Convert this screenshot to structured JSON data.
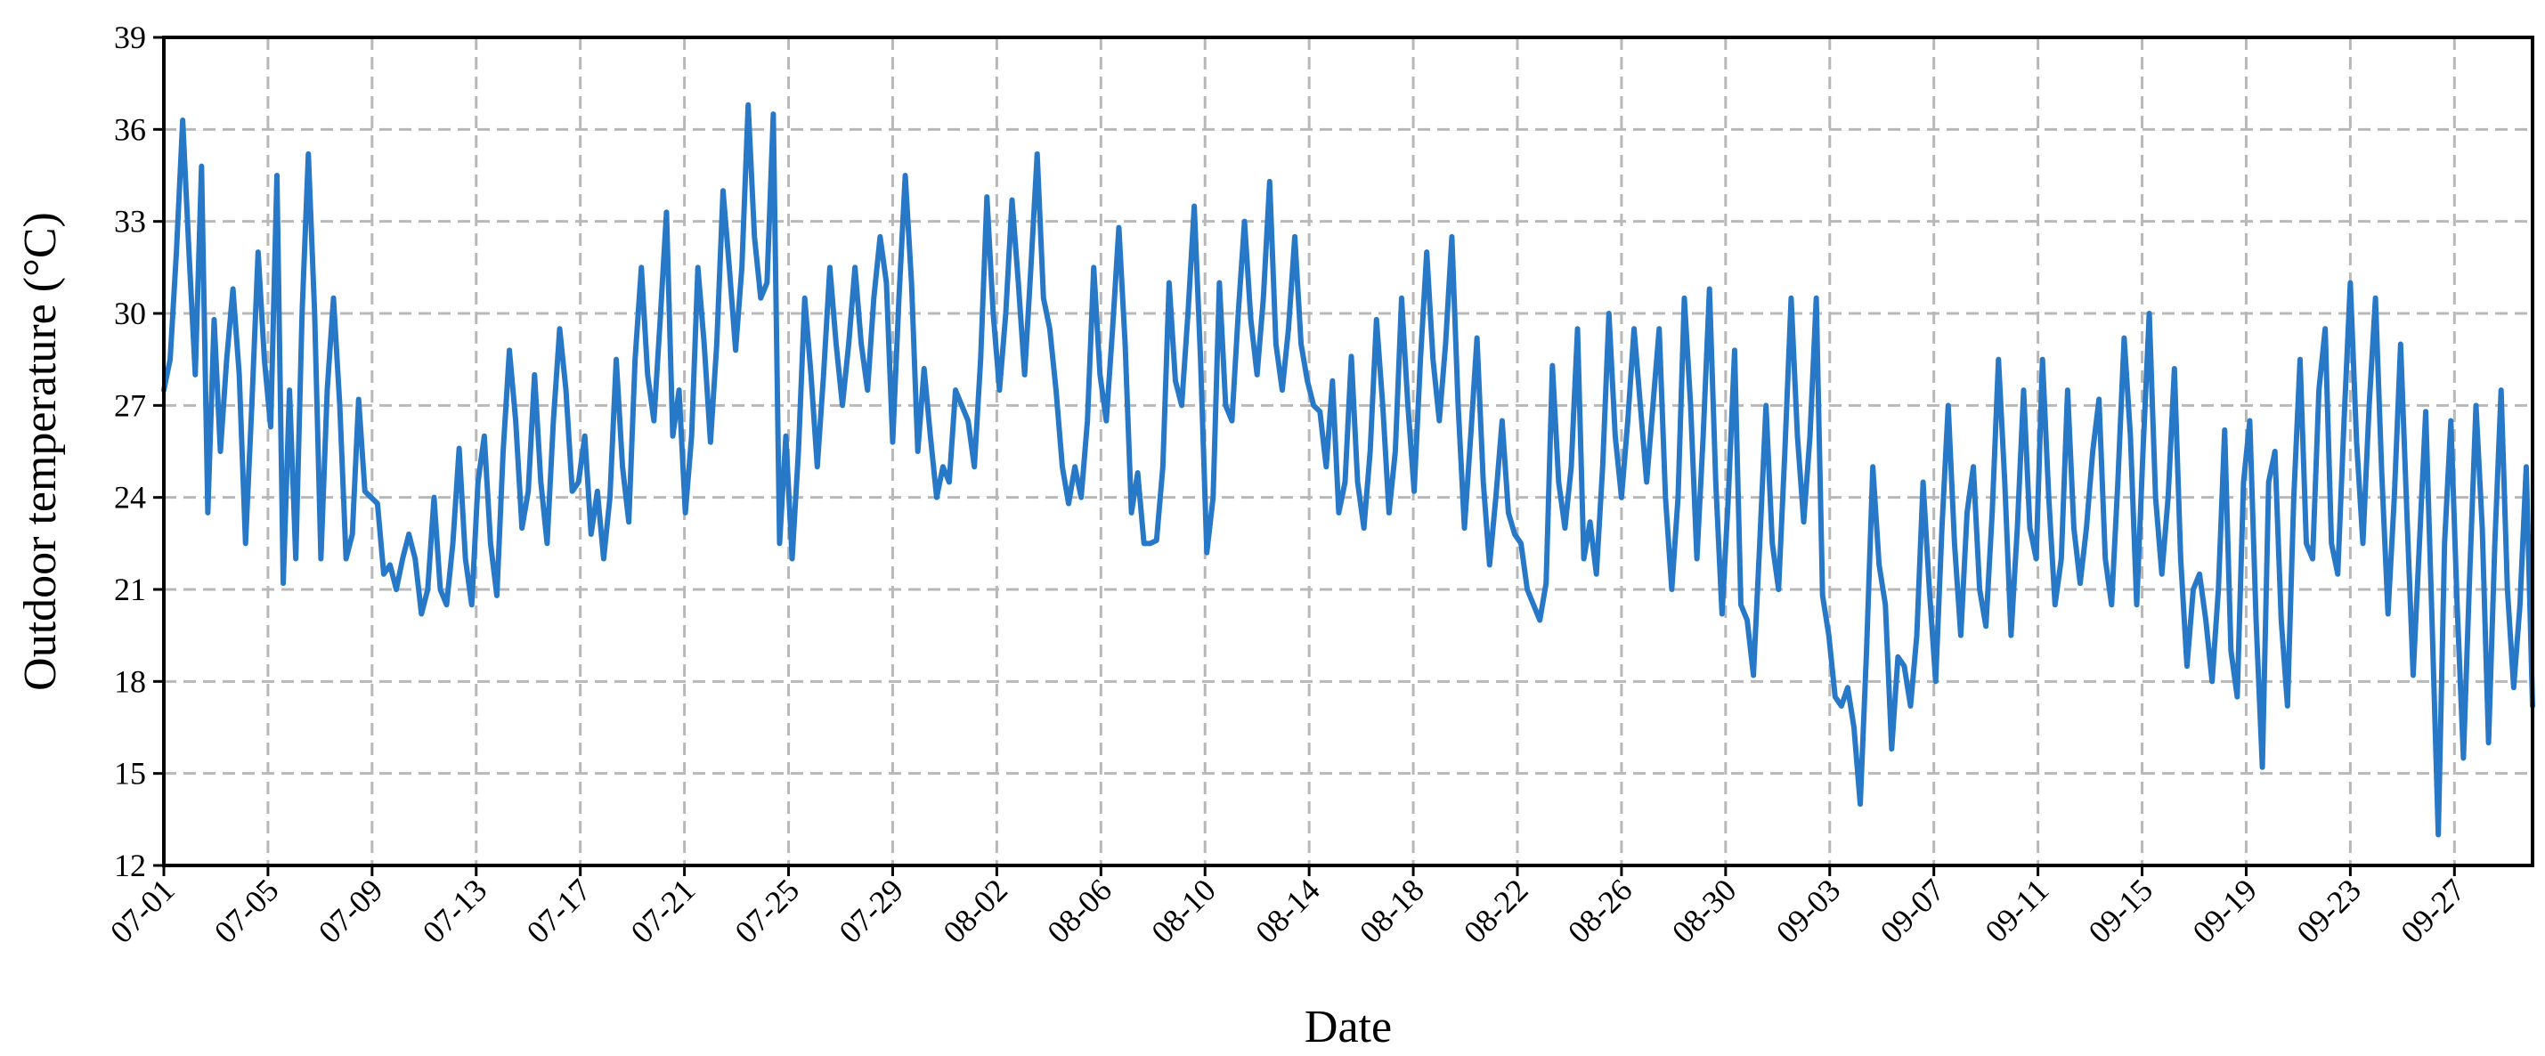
{
  "chart_data": {
    "type": "line",
    "xlabel": "Date",
    "ylabel": "Outdoor temperature (°C)",
    "ylim": [
      12,
      39
    ],
    "yticks": [
      12,
      15,
      18,
      21,
      24,
      27,
      30,
      33,
      36,
      39
    ],
    "xlim": [
      "07-01",
      "09-30"
    ],
    "xticks": [
      "07-01",
      "07-05",
      "07-09",
      "07-13",
      "07-17",
      "07-21",
      "07-25",
      "07-29",
      "08-02",
      "08-06",
      "08-10",
      "08-14",
      "08-18",
      "08-22",
      "08-26",
      "08-30",
      "09-03",
      "09-07",
      "09-11",
      "09-15",
      "09-19",
      "09-23",
      "09-27"
    ],
    "grid": true,
    "line_color": "#2878c8",
    "sampling": "6-hourly",
    "series": [
      {
        "values": [
          27.5,
          28.5,
          32.0,
          36.3,
          32.0,
          28.0,
          34.8,
          23.5,
          29.8,
          25.5,
          28.5,
          30.8,
          28.0,
          22.5,
          27.0,
          32.0,
          28.5,
          26.3,
          34.5,
          21.2,
          27.5,
          22.0,
          30.0,
          35.2,
          30.0,
          22.0,
          27.5,
          30.5,
          27.0,
          22.0,
          22.8,
          27.2,
          24.2,
          24.0,
          23.8,
          21.5,
          21.8,
          21.0,
          22.0,
          22.8,
          22.0,
          20.2,
          21.0,
          24.0,
          21.0,
          20.5,
          22.5,
          25.6,
          22.0,
          20.5,
          24.5,
          26.0,
          22.5,
          20.8,
          25.5,
          28.8,
          26.5,
          23.0,
          24.2,
          28.0,
          24.5,
          22.5,
          26.5,
          29.5,
          27.5,
          24.2,
          24.5,
          26.0,
          22.8,
          24.2,
          22.0,
          24.0,
          28.5,
          25.0,
          23.2,
          28.5,
          31.5,
          28.0,
          26.5,
          29.8,
          33.3,
          26.0,
          27.5,
          23.5,
          26.0,
          31.5,
          29.0,
          25.8,
          29.0,
          34.0,
          31.5,
          28.8,
          31.5,
          36.8,
          32.5,
          30.5,
          31.0,
          36.5,
          22.5,
          26.0,
          22.0,
          25.5,
          30.5,
          28.0,
          25.0,
          28.0,
          31.5,
          29.0,
          27.0,
          29.0,
          31.5,
          29.0,
          27.5,
          30.5,
          32.5,
          31.0,
          25.8,
          30.5,
          34.5,
          31.0,
          25.5,
          28.2,
          26.0,
          24.0,
          25.0,
          24.5,
          27.5,
          27.0,
          26.5,
          25.0,
          28.5,
          33.8,
          30.0,
          27.5,
          30.0,
          33.7,
          31.0,
          28.0,
          31.5,
          35.2,
          30.5,
          29.5,
          27.5,
          25.0,
          23.8,
          25.0,
          24.0,
          26.5,
          31.5,
          28.0,
          26.5,
          29.5,
          32.8,
          29.0,
          23.5,
          24.8,
          22.5,
          22.5,
          22.6,
          25.0,
          31.0,
          27.8,
          27.0,
          30.0,
          33.5,
          28.5,
          22.2,
          24.0,
          31.0,
          27.0,
          26.5,
          30.0,
          33.0,
          29.8,
          28.0,
          30.5,
          34.3,
          29.0,
          27.5,
          29.5,
          32.5,
          29.0,
          27.8,
          27.0,
          26.8,
          25.0,
          27.8,
          23.5,
          24.5,
          28.6,
          24.5,
          23.0,
          25.5,
          29.8,
          27.0,
          23.5,
          25.5,
          30.5,
          27.0,
          24.2,
          28.5,
          32.0,
          28.5,
          26.5,
          29.0,
          32.5,
          27.0,
          23.0,
          26.0,
          29.2,
          24.5,
          21.8,
          24.0,
          26.5,
          23.5,
          22.8,
          22.5,
          21.0,
          20.5,
          20.0,
          21.2,
          28.3,
          24.5,
          23.0,
          25.0,
          29.5,
          22.0,
          23.2,
          21.5,
          25.0,
          30.0,
          26.0,
          24.0,
          26.5,
          29.5,
          27.0,
          24.5,
          27.0,
          29.5,
          24.0,
          21.0,
          24.0,
          30.5,
          27.0,
          22.0,
          26.0,
          30.8,
          24.5,
          20.2,
          24.0,
          28.8,
          20.5,
          20.0,
          18.2,
          22.5,
          27.0,
          22.5,
          21.0,
          25.5,
          30.5,
          26.0,
          23.2,
          26.0,
          30.5,
          20.8,
          19.5,
          17.5,
          17.2,
          17.8,
          16.5,
          14.0,
          19.0,
          25.0,
          21.8,
          20.5,
          15.8,
          18.8,
          18.5,
          17.2,
          19.5,
          24.5,
          21.0,
          18.0,
          23.0,
          27.0,
          22.5,
          19.5,
          23.5,
          25.0,
          21.0,
          19.8,
          23.5,
          28.5,
          24.5,
          19.5,
          23.0,
          27.5,
          23.0,
          22.0,
          28.5,
          24.0,
          20.5,
          22.0,
          27.5,
          23.0,
          21.2,
          23.0,
          25.5,
          27.2,
          22.0,
          20.5,
          24.5,
          29.2,
          26.0,
          20.5,
          25.5,
          30.0,
          24.0,
          21.5,
          24.0,
          28.2,
          22.0,
          18.5,
          21.0,
          21.5,
          20.0,
          18.0,
          21.0,
          26.2,
          19.0,
          17.5,
          24.5,
          26.5,
          20.0,
          15.2,
          24.5,
          25.5,
          20.0,
          17.2,
          24.0,
          28.5,
          22.5,
          22.0,
          27.5,
          29.5,
          22.5,
          21.5,
          26.5,
          31.0,
          25.8,
          22.5,
          27.0,
          30.5,
          24.8,
          20.2,
          24.0,
          29.0,
          23.5,
          18.2,
          22.5,
          26.8,
          20.0,
          13.0,
          22.5,
          26.5,
          20.5,
          15.5,
          21.5,
          27.0,
          23.0,
          16.0,
          22.5,
          27.5,
          21.0,
          17.8,
          20.5,
          25.0,
          17.2
        ]
      }
    ]
  }
}
